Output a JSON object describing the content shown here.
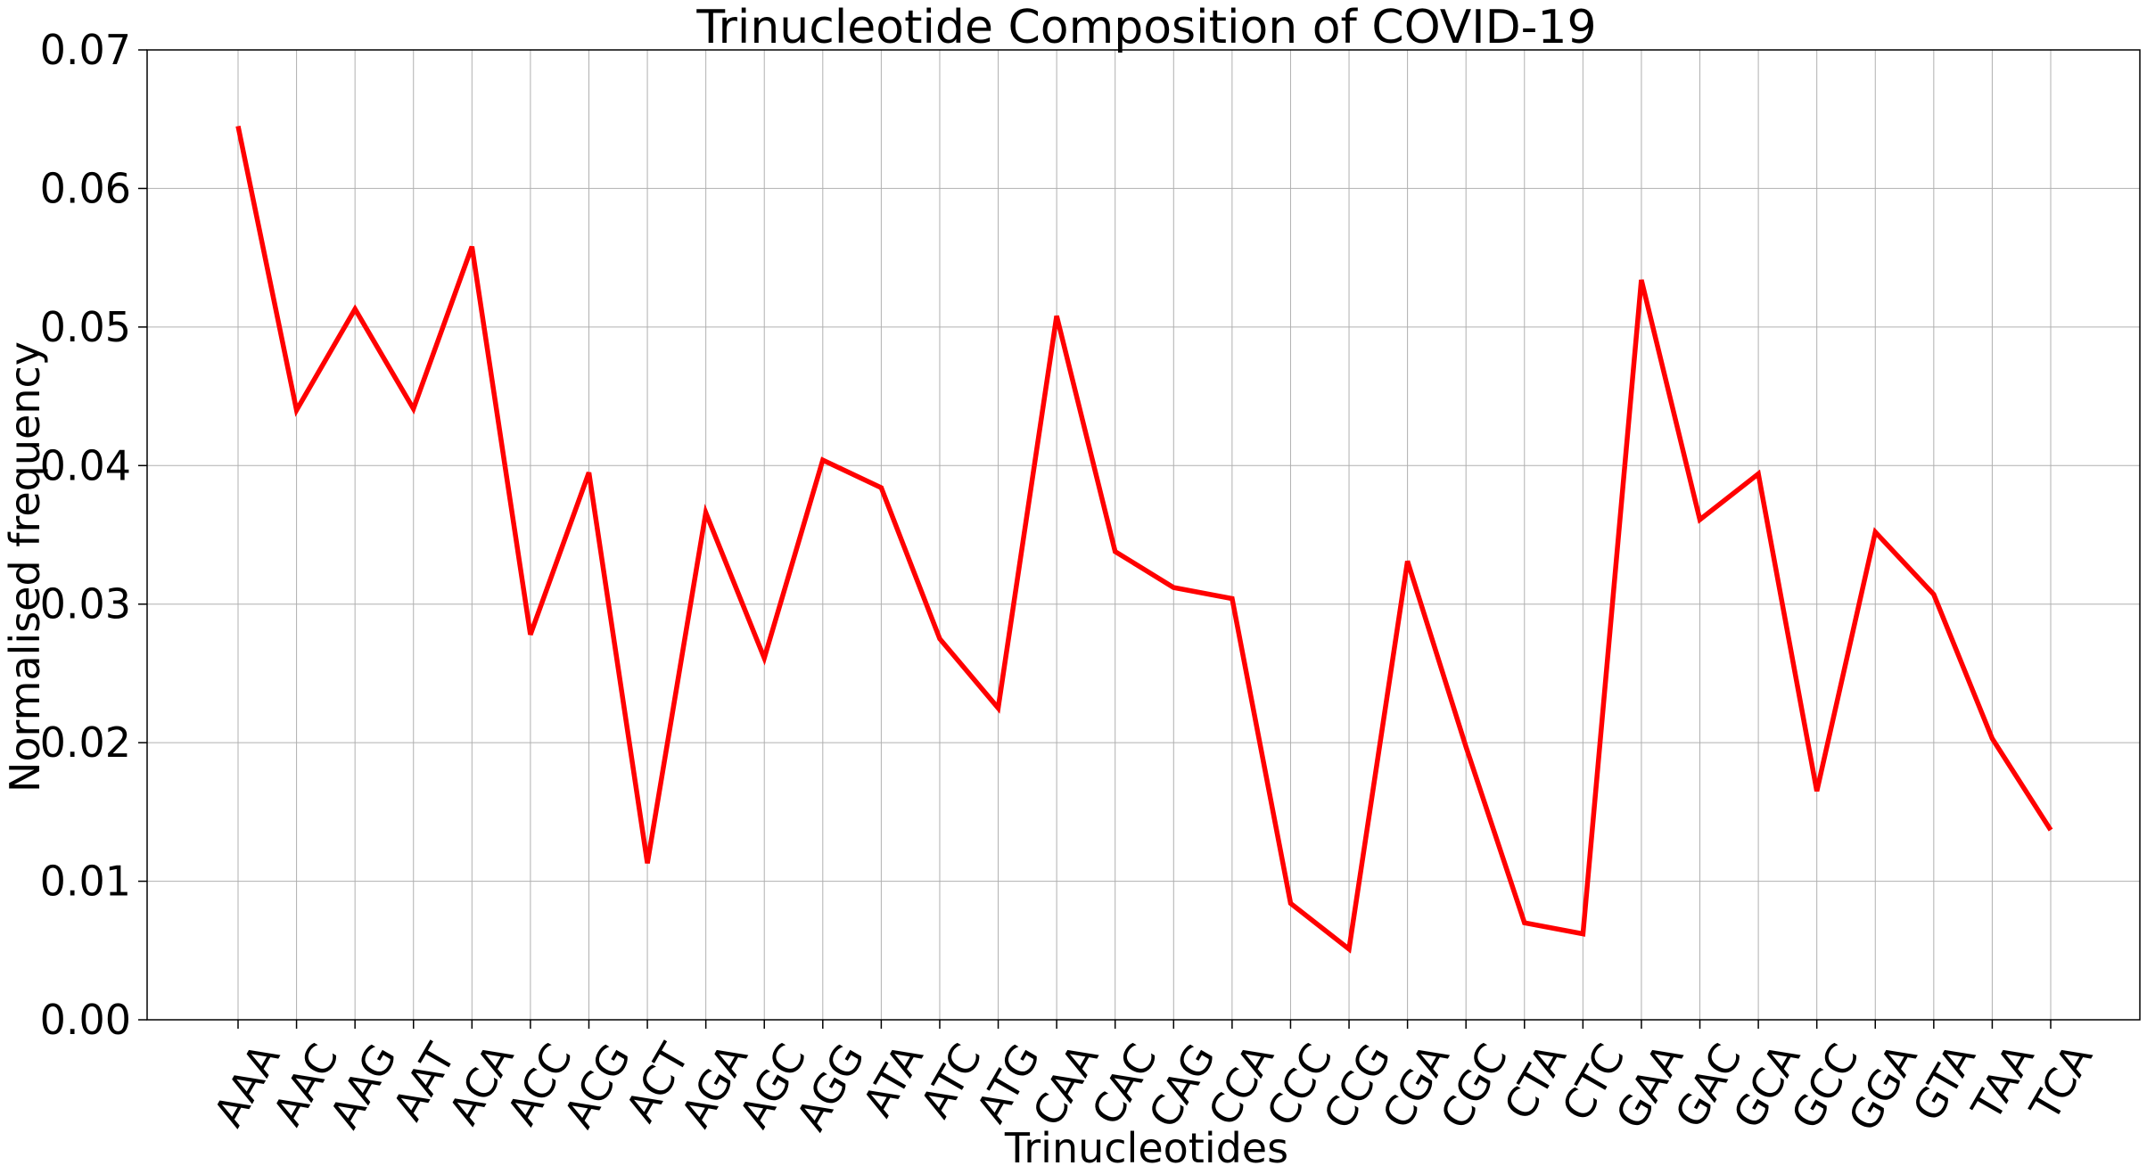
{
  "chart_data": {
    "type": "line",
    "title": "Trinucleotide Composition of COVID-19",
    "xlabel": "Trinucleotides",
    "ylabel": "Normalised frequency",
    "ylim": [
      0,
      0.07
    ],
    "yticks": [
      "0.00",
      "0.01",
      "0.02",
      "0.03",
      "0.04",
      "0.05",
      "0.06",
      "0.07"
    ],
    "grid": true,
    "categories": [
      "AAA",
      "AAC",
      "AAG",
      "AAT",
      "ACA",
      "ACC",
      "ACG",
      "ACT",
      "AGA",
      "AGC",
      "AGG",
      "ATA",
      "ATC",
      "ATG",
      "CAA",
      "CAC",
      "CAG",
      "CCA",
      "CCC",
      "CCG",
      "CGA",
      "CGC",
      "CTA",
      "CTC",
      "GAA",
      "GAC",
      "GCA",
      "GCC",
      "GGA",
      "GTA",
      "TAA",
      "TCA"
    ],
    "series": [
      {
        "color": "#ff0000",
        "values": [
          0.0645,
          0.044,
          0.0513,
          0.0441,
          0.0558,
          0.0278,
          0.0395,
          0.0113,
          0.0366,
          0.0261,
          0.0404,
          0.0384,
          0.0275,
          0.0225,
          0.0508,
          0.0338,
          0.0312,
          0.0304,
          0.0084,
          0.0051,
          0.0331,
          0.0197,
          0.007,
          0.0062,
          0.0534,
          0.0361,
          0.0394,
          0.0165,
          0.0352,
          0.0307,
          0.0203,
          0.0137
        ]
      }
    ]
  }
}
